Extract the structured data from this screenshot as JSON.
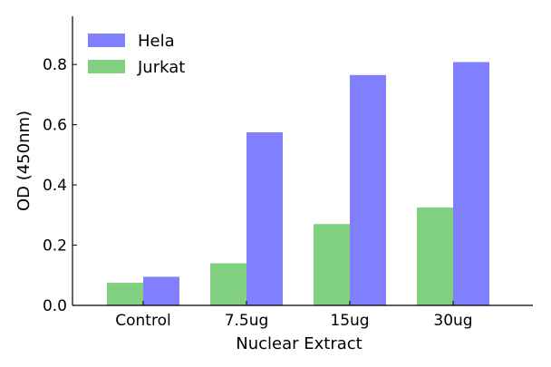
{
  "chart_data": {
    "type": "bar",
    "categories": [
      "Control",
      "7.5ug",
      "15ug",
      "30ug"
    ],
    "series": [
      {
        "name": "Jurkat",
        "values": [
          0.075,
          0.14,
          0.27,
          0.325
        ],
        "color": "#80d080"
      },
      {
        "name": "Hela",
        "values": [
          0.095,
          0.575,
          0.765,
          0.808
        ],
        "color": "#8080ff"
      }
    ],
    "legend_order": [
      "Hela",
      "Jurkat"
    ],
    "xlabel": "Nuclear Extract",
    "ylabel": "OD (450nm)",
    "ylim": [
      0,
      0.96
    ],
    "yticks": [
      0.0,
      0.2,
      0.4,
      0.6,
      0.8
    ],
    "ytick_labels": [
      "0.0",
      "0.2",
      "0.4",
      "0.6",
      "0.8"
    ],
    "grid": false,
    "legend_position": "top-left"
  }
}
